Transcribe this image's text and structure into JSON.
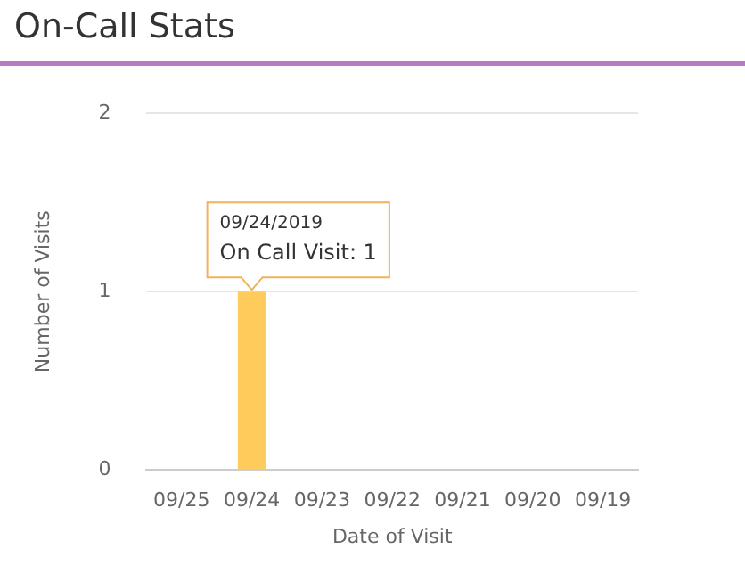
{
  "chart_data": {
    "type": "bar",
    "title": "On-Call Stats",
    "xlabel": "Date of Visit",
    "ylabel": "Number of Visits",
    "categories": [
      "09/25",
      "09/24",
      "09/23",
      "09/22",
      "09/21",
      "09/20",
      "09/19"
    ],
    "values": [
      0,
      1,
      0,
      0,
      0,
      0,
      0
    ],
    "color": "#ffcc5c",
    "ylim": [
      0,
      2
    ],
    "yticks": [
      0,
      1,
      2
    ],
    "grid": "y",
    "annotations": [
      {
        "text": "09/24/2019\nOn Call Visit: 1",
        "x": "09/24",
        "y": 1
      }
    ]
  }
}
